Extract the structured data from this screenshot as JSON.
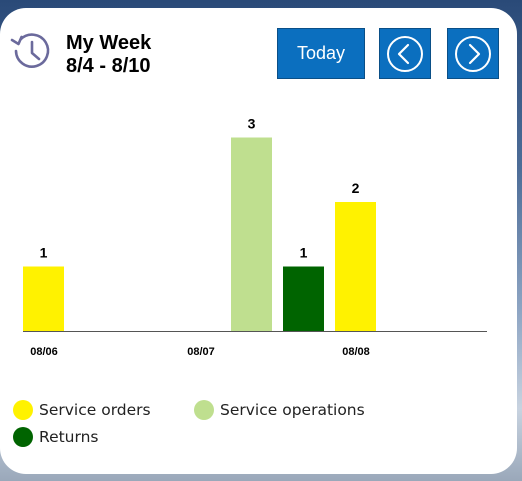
{
  "header": {
    "title": "My Week",
    "date_range": "8/4 - 8/10",
    "today_label": "Today"
  },
  "icons": {
    "history": "history-icon",
    "previous": "chevron-left-circle-icon",
    "next": "chevron-right-circle-icon"
  },
  "colors": {
    "accent": "#0b6fbf",
    "service_orders": "#fff200",
    "service_operations": "#bfdf8f",
    "returns": "#006400"
  },
  "legend": [
    {
      "label": "Service orders",
      "color": "#fff200"
    },
    {
      "label": "Service operations",
      "color": "#bfdf8f"
    },
    {
      "label": "Returns",
      "color": "#006400"
    }
  ],
  "chart_data": {
    "type": "bar",
    "categories": [
      "08/06",
      "08/07",
      "08/08"
    ],
    "series": [
      {
        "name": "Service orders",
        "color": "#fff200",
        "values": [
          1,
          0,
          2
        ]
      },
      {
        "name": "Service operations",
        "color": "#bfdf8f",
        "values": [
          0,
          3,
          0
        ]
      },
      {
        "name": "Returns",
        "color": "#006400",
        "values": [
          0,
          1,
          0
        ]
      }
    ],
    "ylim": [
      0,
      3
    ],
    "grid": false,
    "legend_position": "bottom"
  }
}
